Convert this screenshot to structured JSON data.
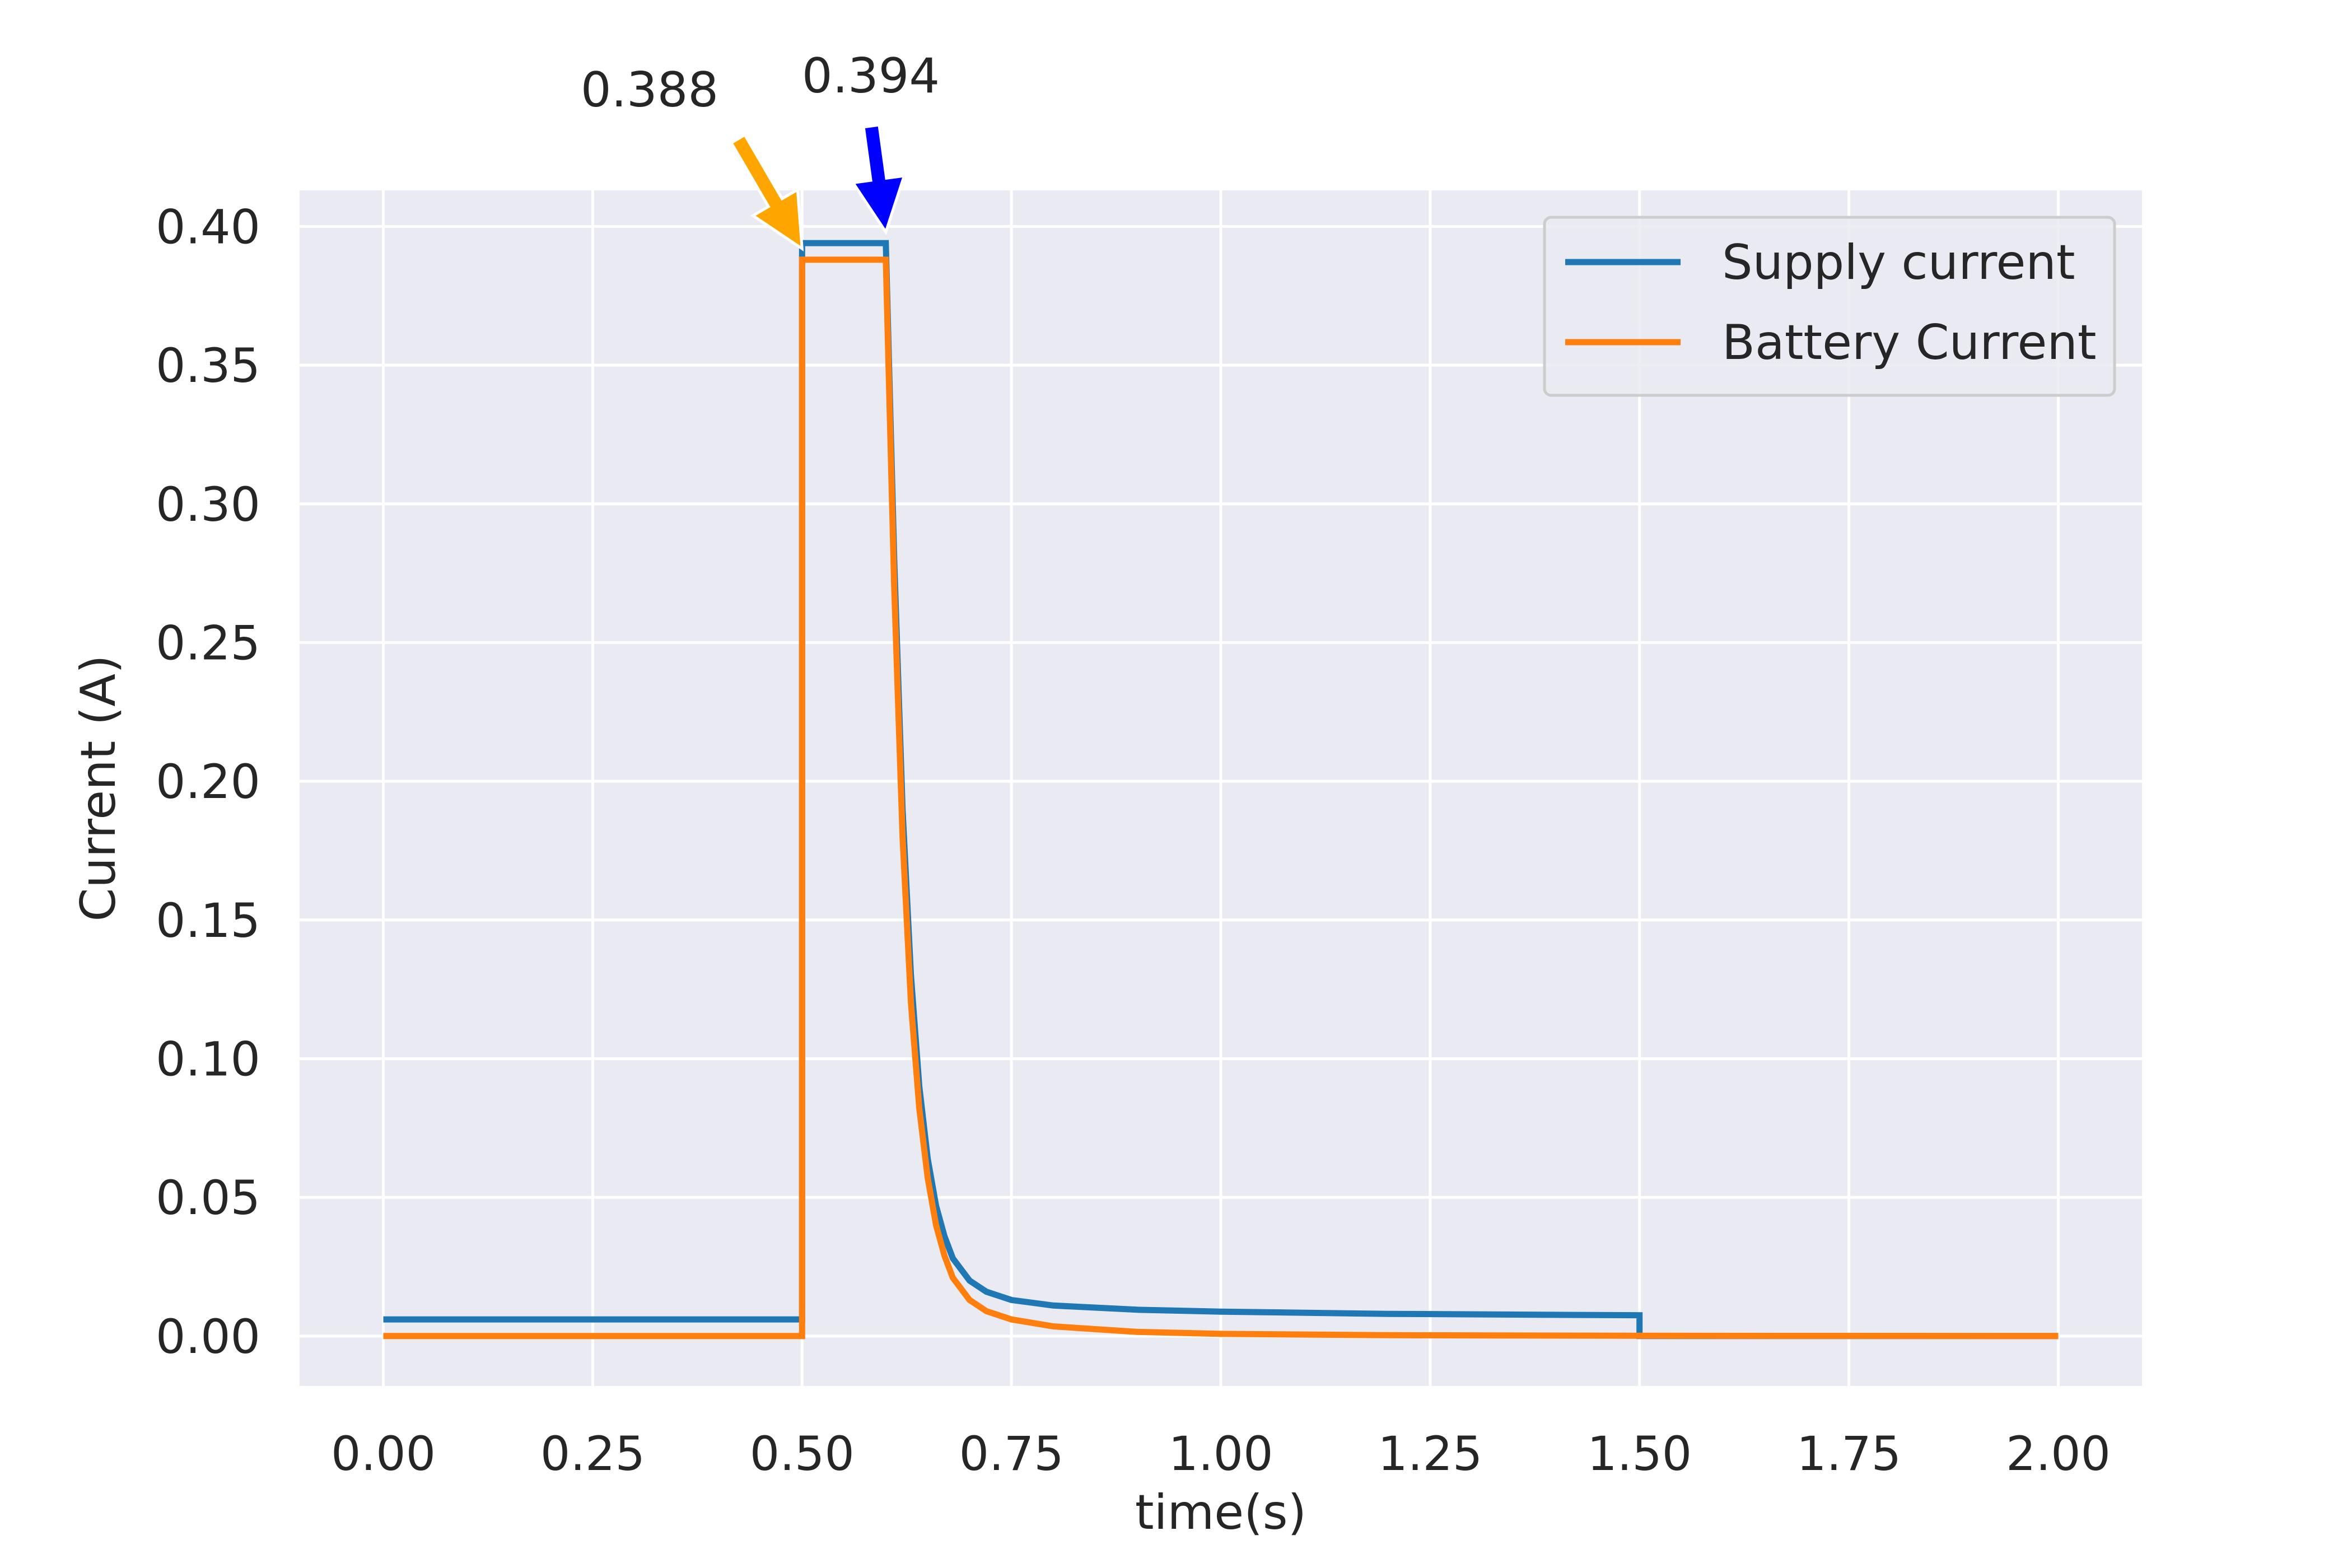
{
  "chart_data": {
    "type": "line",
    "title": "",
    "xlabel": "time(s)",
    "ylabel": "Current (A)",
    "xlim": [
      -0.1,
      2.1
    ],
    "ylim": [
      -0.018,
      0.413
    ],
    "grid": true,
    "background": "#eaeaf2",
    "legend_position": "top-right",
    "x_ticks": [
      {
        "value": 0.0,
        "label": "0.00"
      },
      {
        "value": 0.25,
        "label": "0.25"
      },
      {
        "value": 0.5,
        "label": "0.50"
      },
      {
        "value": 0.75,
        "label": "0.75"
      },
      {
        "value": 1.0,
        "label": "1.00"
      },
      {
        "value": 1.25,
        "label": "1.25"
      },
      {
        "value": 1.5,
        "label": "1.50"
      },
      {
        "value": 1.75,
        "label": "1.75"
      },
      {
        "value": 2.0,
        "label": "2.00"
      }
    ],
    "y_ticks": [
      {
        "value": 0.0,
        "label": "0.00"
      },
      {
        "value": 0.05,
        "label": "0.05"
      },
      {
        "value": 0.1,
        "label": "0.10"
      },
      {
        "value": 0.15,
        "label": "0.15"
      },
      {
        "value": 0.2,
        "label": "0.20"
      },
      {
        "value": 0.25,
        "label": "0.25"
      },
      {
        "value": 0.3,
        "label": "0.30"
      },
      {
        "value": 0.35,
        "label": "0.35"
      },
      {
        "value": 0.4,
        "label": "0.40"
      }
    ],
    "series": [
      {
        "name": "Supply current",
        "color": "#1f77b4",
        "points": [
          [
            0.0,
            0.006
          ],
          [
            0.5,
            0.006
          ],
          [
            0.5,
            0.394
          ],
          [
            0.6,
            0.394
          ],
          [
            0.61,
            0.28
          ],
          [
            0.62,
            0.19
          ],
          [
            0.63,
            0.13
          ],
          [
            0.64,
            0.09
          ],
          [
            0.65,
            0.064
          ],
          [
            0.66,
            0.047
          ],
          [
            0.67,
            0.036
          ],
          [
            0.68,
            0.028
          ],
          [
            0.7,
            0.02
          ],
          [
            0.72,
            0.016
          ],
          [
            0.75,
            0.013
          ],
          [
            0.8,
            0.011
          ],
          [
            0.9,
            0.0095
          ],
          [
            1.0,
            0.0088
          ],
          [
            1.2,
            0.008
          ],
          [
            1.5,
            0.0075
          ],
          [
            1.5,
            0.0
          ],
          [
            2.0,
            0.0
          ]
        ]
      },
      {
        "name": "Battery Current",
        "color": "#ff7f0e",
        "points": [
          [
            0.0,
            0.0
          ],
          [
            0.5,
            0.0
          ],
          [
            0.5,
            0.388
          ],
          [
            0.6,
            0.388
          ],
          [
            0.61,
            0.27
          ],
          [
            0.62,
            0.18
          ],
          [
            0.63,
            0.12
          ],
          [
            0.64,
            0.082
          ],
          [
            0.65,
            0.057
          ],
          [
            0.66,
            0.04
          ],
          [
            0.67,
            0.029
          ],
          [
            0.68,
            0.021
          ],
          [
            0.7,
            0.013
          ],
          [
            0.72,
            0.009
          ],
          [
            0.75,
            0.006
          ],
          [
            0.8,
            0.0035
          ],
          [
            0.9,
            0.0015
          ],
          [
            1.0,
            0.0008
          ],
          [
            1.2,
            0.0003
          ],
          [
            1.5,
            0.0001
          ],
          [
            2.0,
            0.0
          ]
        ]
      }
    ],
    "annotations": [
      {
        "text": "0.388",
        "target": [
          0.5,
          0.392
        ],
        "arrow_color": "#ffa500"
      },
      {
        "text": "0.394",
        "target": [
          0.6,
          0.398
        ],
        "arrow_color": "#0000ff"
      }
    ]
  }
}
